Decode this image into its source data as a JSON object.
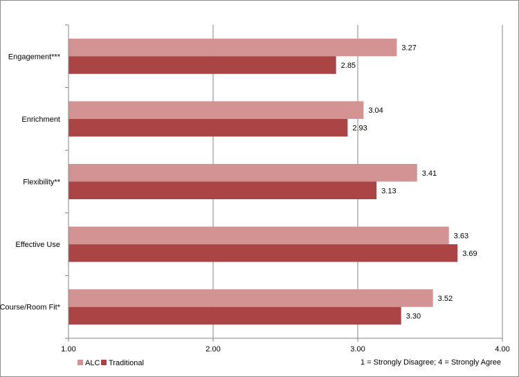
{
  "chart_data": {
    "type": "bar",
    "orientation": "horizontal",
    "categories": [
      "Engagement***",
      "Enrichment",
      "Flexibility**",
      "Effective Use",
      "Course/Room Fit*"
    ],
    "series": [
      {
        "name": "ALC",
        "values": [
          3.27,
          3.04,
          3.41,
          3.63,
          3.52
        ],
        "labels": [
          "3.27",
          "3.04",
          "3.41",
          "3.63",
          "3.52"
        ]
      },
      {
        "name": "Traditional",
        "values": [
          2.85,
          2.93,
          3.13,
          3.69,
          3.3
        ],
        "labels": [
          "2.85",
          "2.93",
          "3.13",
          "3.69",
          "3.30"
        ]
      }
    ],
    "xlim": [
      1.0,
      4.0
    ],
    "ticks": [
      1.0,
      2.0,
      3.0,
      4.0
    ],
    "tick_labels": [
      "1.00",
      "2.00",
      "3.00",
      "4.00"
    ],
    "grid": true,
    "legend_position": "bottom-left",
    "note": "1 = Strongly Disagree; 4 = Strongly Agree",
    "colors": {
      "ALC": "#d39393",
      "Traditional": "#ab4545",
      "grid": "#868686",
      "axis": "#868686"
    }
  }
}
